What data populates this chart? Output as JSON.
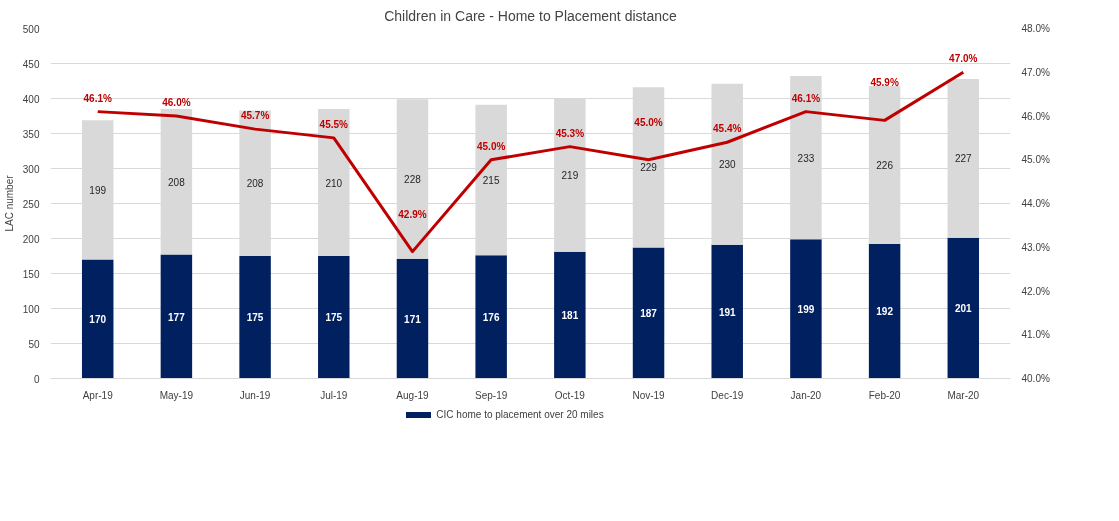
{
  "chart_data": {
    "type": "bar",
    "title": "Children in Care - Home to Placement distance",
    "ylabel": "LAC number",
    "categories": [
      "Apr-19",
      "May-19",
      "Jun-19",
      "Jul-19",
      "Aug-19",
      "Sep-19",
      "Oct-19",
      "Nov-19",
      "Dec-19",
      "Jan-20",
      "Feb-20",
      "Mar-20"
    ],
    "stacked": true,
    "data_labels": true,
    "grid": "y",
    "legend": "bottom",
    "ylim": [
      0,
      500
    ],
    "yticks": [
      0,
      50,
      100,
      150,
      200,
      250,
      300,
      350,
      400,
      450,
      500
    ],
    "y2lim": [
      40,
      48
    ],
    "y2ticks": [
      {
        "value": 40,
        "label": "40.0%"
      },
      {
        "value": 41,
        "label": "41.0%"
      },
      {
        "value": 42,
        "label": "42.0%"
      },
      {
        "value": 43,
        "label": "43.0%"
      },
      {
        "value": 44,
        "label": "44.0%"
      },
      {
        "value": 45,
        "label": "45.0%"
      },
      {
        "value": 46,
        "label": "46.0%"
      },
      {
        "value": 47,
        "label": "47.0%"
      },
      {
        "value": 48,
        "label": "48.0%"
      }
    ],
    "series": [
      {
        "name": "CIC home to placement over 20 miles",
        "color": "#002060",
        "values": [
          170,
          177,
          175,
          175,
          171,
          176,
          181,
          187,
          191,
          199,
          192,
          201
        ]
      },
      {
        "color": "#d9d9d9",
        "values": [
          199,
          208,
          208,
          210,
          228,
          215,
          219,
          229,
          230,
          233,
          226,
          227
        ]
      },
      {
        "type": "line",
        "axis": "y2",
        "color": "#c00000",
        "marker": "none",
        "line_style": "solid",
        "values": [
          46.1,
          46.0,
          45.7,
          45.5,
          42.9,
          45.0,
          45.3,
          45.0,
          45.4,
          46.1,
          45.9,
          47.0
        ],
        "value_labels": [
          "46.1%",
          "46.0%",
          "45.7%",
          "45.5%",
          "42.9%",
          "45.0%",
          "45.3%",
          "45.0%",
          "45.4%",
          "46.1%",
          "45.9%",
          "47.0%"
        ]
      }
    ]
  }
}
